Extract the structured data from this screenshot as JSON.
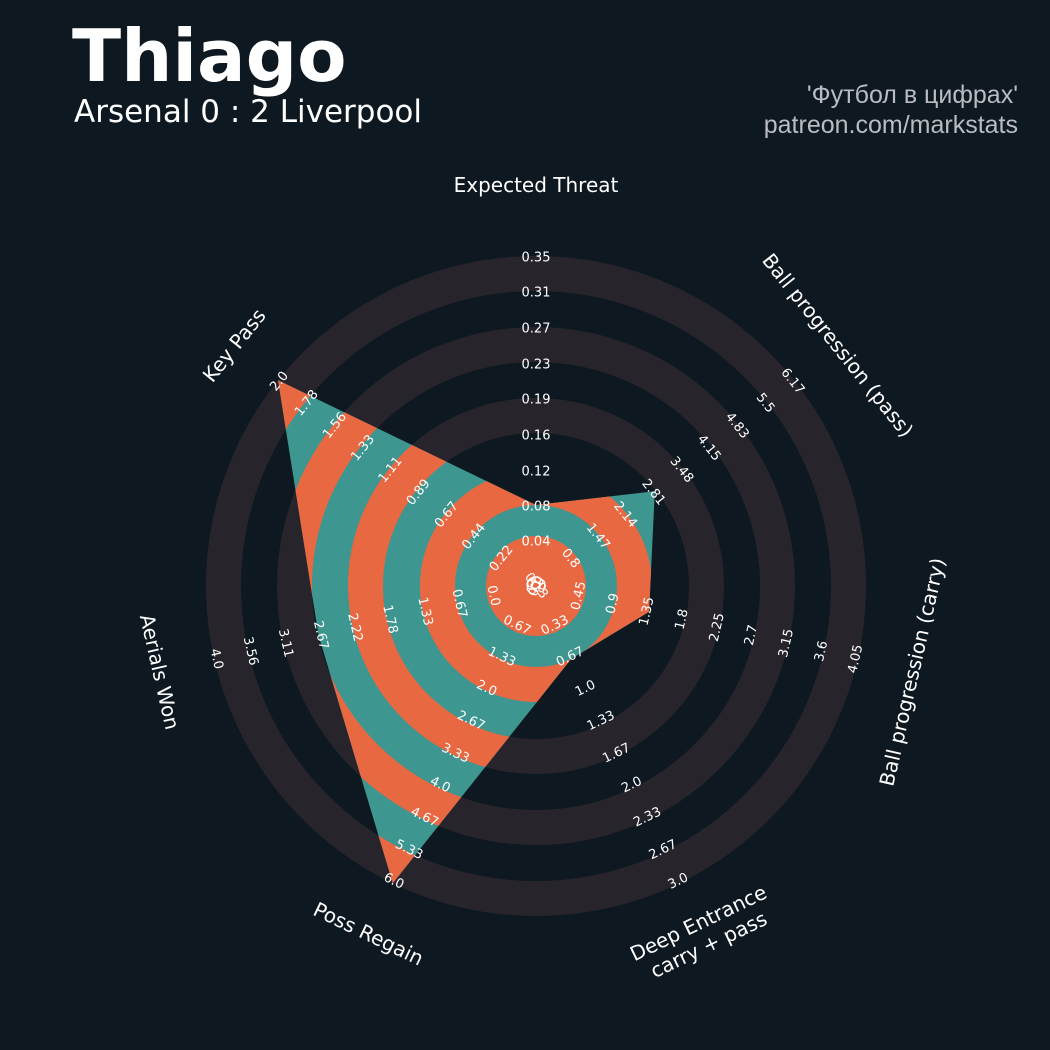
{
  "header": {
    "title": "Thiago",
    "subtitle": "Arsenal 0 : 2 Liverpool",
    "credit_line1": "'Футбол в цифрах'",
    "credit_line2": "patreon.com/markstats"
  },
  "colors": {
    "background": "#0e1821",
    "range_band": "#28242b",
    "polygon_primary": "#3d9690",
    "polygon_alternate": "#e86842",
    "text": "#ffffff",
    "credit_text": "#b9bdc1"
  },
  "chart_data": {
    "type": "radar",
    "title": "Thiago",
    "subtitle": "Arsenal 0 : 2 Liverpool",
    "params": [
      {
        "name": "Expected Threat",
        "lines": [
          "Expected Threat"
        ],
        "value": 0.08,
        "ticks": [
          "0.0",
          "0.04",
          "0.08",
          "0.12",
          "0.16",
          "0.19",
          "0.23",
          "0.27",
          "0.31",
          "0.35"
        ]
      },
      {
        "name": "Ball progression (pass)",
        "lines": [
          "Ball progression (pass)"
        ],
        "value": 2.81,
        "ticks": [
          "0.13",
          "0.8",
          "1.47",
          "2.14",
          "2.81",
          "3.48",
          "4.15",
          "4.83",
          "5.5",
          "6.17"
        ]
      },
      {
        "name": "Ball progression (carry)",
        "lines": [
          "Ball progression (carry)"
        ],
        "value": 1.35,
        "ticks": [
          "0.0",
          "0.45",
          "0.9",
          "1.35",
          "1.8",
          "2.25",
          "2.7",
          "3.15",
          "3.6",
          "4.05"
        ]
      },
      {
        "name": "Deep Entrance carry + pass",
        "lines": [
          "Deep Entrance",
          "carry + pass"
        ],
        "value": 1.0,
        "ticks": [
          "0.33",
          "0.67",
          "1.0",
          "1.33",
          "1.67",
          "2.0",
          "2.33",
          "2.67",
          "3.0"
        ]
      },
      {
        "name": "Poss Regain",
        "lines": [
          "Poss Regain"
        ],
        "value": 6.0,
        "ticks": [
          "0.0",
          "0.67",
          "1.33",
          "2.0",
          "2.67",
          "3.33",
          "4.0",
          "4.67",
          "5.33",
          "6.0"
        ]
      },
      {
        "name": "Aerials Won",
        "lines": [
          "Aerials Won"
        ],
        "value": 3.11,
        "ticks": [
          "0.0",
          "0.67",
          "1.33",
          "1.78",
          "2.22",
          "2.67",
          "3.11",
          "3.56",
          "4.0"
        ]
      },
      {
        "name": "Key Pass",
        "lines": [
          "Key Pass"
        ],
        "value": 2.0,
        "ticks": [
          "0.0",
          "0.22",
          "0.44",
          "0.67",
          "0.89",
          "1.11",
          "1.33",
          "1.56",
          "1.78",
          "2.0"
        ]
      }
    ]
  }
}
